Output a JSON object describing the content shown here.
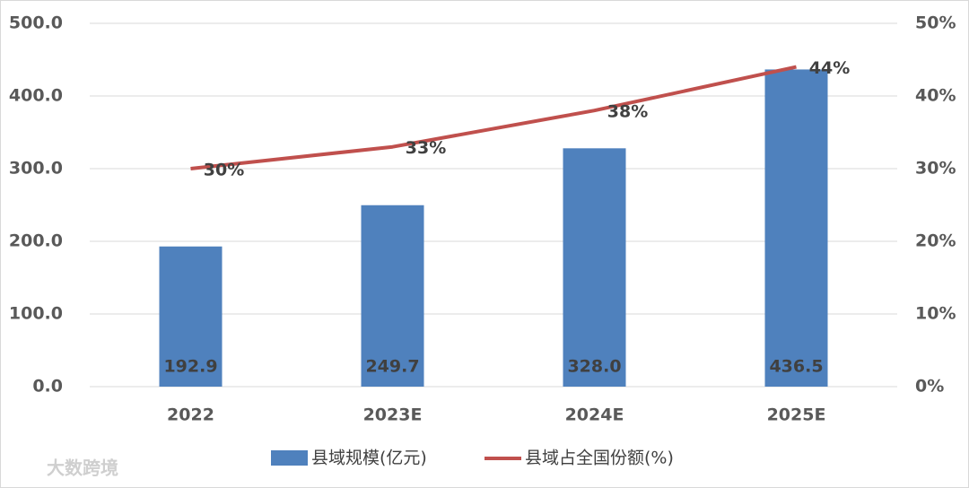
{
  "chart_data": {
    "type": "combo",
    "categories": [
      "2022",
      "2023E",
      "2024E",
      "2025E"
    ],
    "series": [
      {
        "name": "县域规模(亿元)",
        "type": "bar",
        "color": "#4f81bd",
        "values": [
          192.9,
          249.7,
          328.0,
          436.5
        ],
        "value_labels": [
          "192.9",
          "249.7",
          "328.0",
          "436.5"
        ]
      },
      {
        "name": "县域占全国份额(%)",
        "type": "line",
        "axis": "y2",
        "color": "#c0504d",
        "values": [
          30,
          33,
          38,
          44
        ],
        "value_labels": [
          "30%",
          "33%",
          "38%",
          "44%"
        ]
      }
    ],
    "ylim": [
      0,
      500
    ],
    "yticks": [
      {
        "value": 0,
        "label": "0.0"
      },
      {
        "value": 100,
        "label": "100.0"
      },
      {
        "value": 200,
        "label": "200.0"
      },
      {
        "value": 300,
        "label": "300.0"
      },
      {
        "value": 400,
        "label": "400.0"
      },
      {
        "value": 500,
        "label": "500.0"
      }
    ],
    "y2lim": [
      0,
      50
    ],
    "y2ticks": [
      {
        "value": 0,
        "label": "0%"
      },
      {
        "value": 10,
        "label": "10%"
      },
      {
        "value": 20,
        "label": "20%"
      },
      {
        "value": 30,
        "label": "30%"
      },
      {
        "value": 40,
        "label": "40%"
      },
      {
        "value": 50,
        "label": "50%"
      }
    ],
    "grid": true,
    "legend": "bottom"
  },
  "watermark": "大数跨境"
}
